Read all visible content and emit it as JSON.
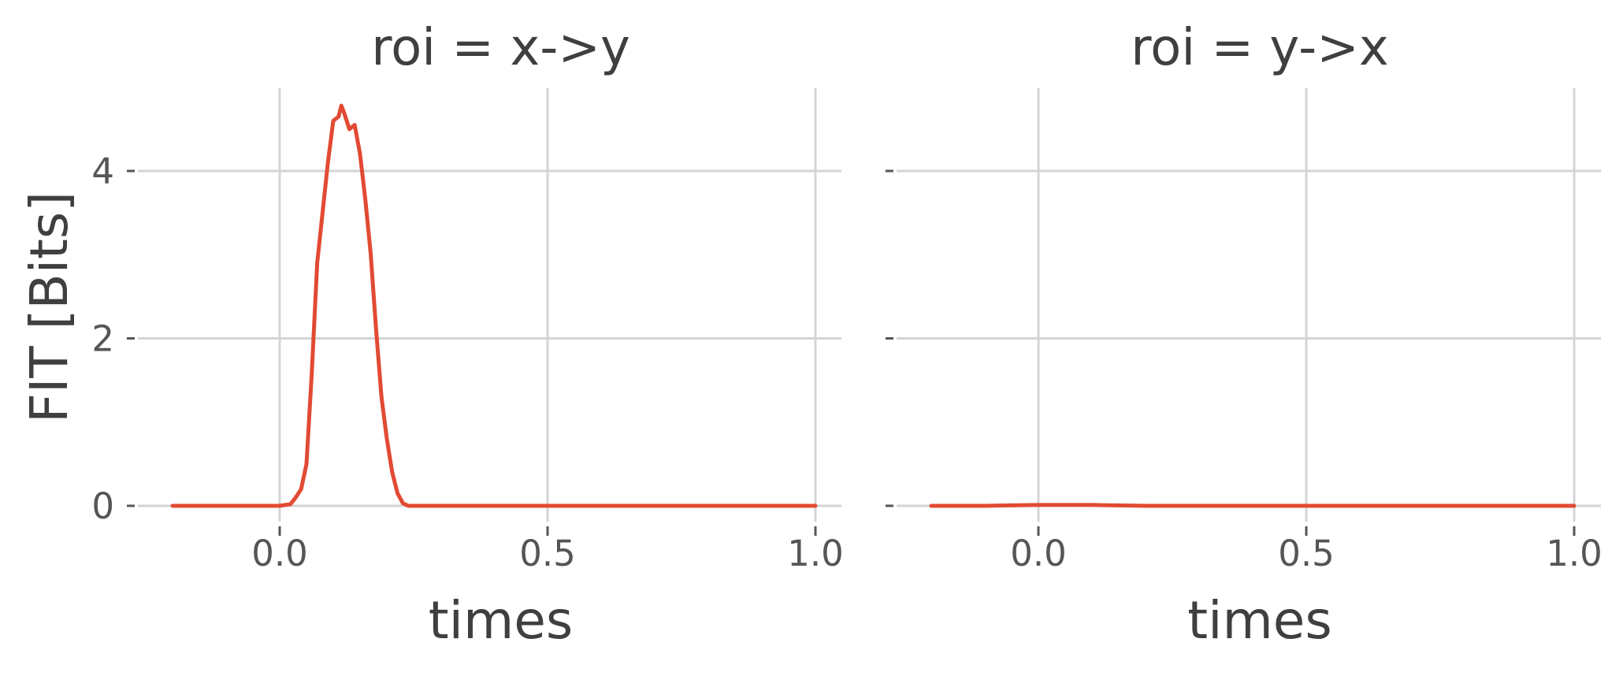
{
  "chart_data": [
    {
      "type": "line",
      "title": "roi = x->y",
      "xlabel": "times",
      "ylabel": "FIT [Bits]",
      "xlim": [
        -0.2,
        1.0
      ],
      "ylim": [
        -0.2,
        4.8
      ],
      "xticks": [
        0.0,
        0.5,
        1.0
      ],
      "xtick_labels": [
        "0.0",
        "0.5",
        "1.0"
      ],
      "yticks": [
        0,
        2,
        4
      ],
      "ytick_labels": [
        "0",
        "2",
        "4"
      ],
      "grid": true,
      "series": [
        {
          "color": "#e24a33",
          "x": [
            -0.2,
            -0.15,
            -0.1,
            -0.05,
            0.0,
            0.02,
            0.03,
            0.04,
            0.05,
            0.06,
            0.07,
            0.08,
            0.09,
            0.1,
            0.11,
            0.115,
            0.12,
            0.13,
            0.14,
            0.15,
            0.16,
            0.17,
            0.18,
            0.19,
            0.2,
            0.21,
            0.22,
            0.23,
            0.24,
            0.25,
            0.26,
            0.3,
            0.4,
            0.5,
            0.6,
            0.7,
            0.8,
            0.9,
            1.0
          ],
          "y": [
            0.0,
            0.0,
            0.0,
            0.0,
            0.0,
            0.02,
            0.1,
            0.2,
            0.5,
            1.6,
            2.9,
            3.5,
            4.1,
            4.6,
            4.65,
            4.78,
            4.7,
            4.5,
            4.55,
            4.2,
            3.65,
            3.0,
            2.1,
            1.3,
            0.8,
            0.4,
            0.15,
            0.03,
            0.0,
            0.0,
            0.0,
            0.0,
            0.0,
            0.0,
            0.0,
            0.0,
            0.0,
            0.0,
            0.0
          ]
        }
      ]
    },
    {
      "type": "line",
      "title": "roi = y->x",
      "xlabel": "times",
      "ylabel": "",
      "xlim": [
        -0.2,
        1.0
      ],
      "ylim": [
        -0.2,
        4.8
      ],
      "xticks": [
        0.0,
        0.5,
        1.0
      ],
      "xtick_labels": [
        "0.0",
        "0.5",
        "1.0"
      ],
      "yticks": [
        0,
        2,
        4
      ],
      "ytick_labels": [
        "",
        "",
        ""
      ],
      "grid": true,
      "series": [
        {
          "color": "#e24a33",
          "x": [
            -0.2,
            -0.1,
            0.0,
            0.1,
            0.2,
            0.3,
            0.4,
            0.5,
            0.6,
            0.7,
            0.8,
            0.9,
            1.0
          ],
          "y": [
            0.0,
            0.0,
            0.01,
            0.01,
            0.0,
            0.0,
            0.0,
            0.0,
            0.0,
            0.0,
            0.0,
            0.0,
            0.0
          ]
        }
      ]
    }
  ]
}
